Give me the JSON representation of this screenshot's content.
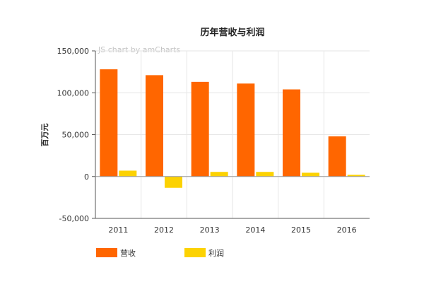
{
  "chart_data": {
    "type": "bar",
    "title": "历年营收与利润",
    "ylabel": "百万元",
    "xlabel": "",
    "watermark": "JS chart by amCharts",
    "categories": [
      "2011",
      "2012",
      "2013",
      "2014",
      "2015",
      "2016"
    ],
    "series": [
      {
        "name": "营收",
        "color": "#ff6600",
        "values": [
          128000,
          121000,
          113000,
          111000,
          104000,
          48000
        ]
      },
      {
        "name": "利润",
        "color": "#fcd202",
        "values": [
          7000,
          -13500,
          5500,
          5500,
          4500,
          2000
        ]
      }
    ],
    "ylim": [
      -50000,
      150000
    ],
    "yticks": [
      -50000,
      0,
      50000,
      100000,
      150000
    ],
    "ytick_labels": [
      "-50,000",
      "0",
      "50,000",
      "100,000",
      "150,000"
    ],
    "grid": true,
    "legend_position": "bottom-left"
  }
}
